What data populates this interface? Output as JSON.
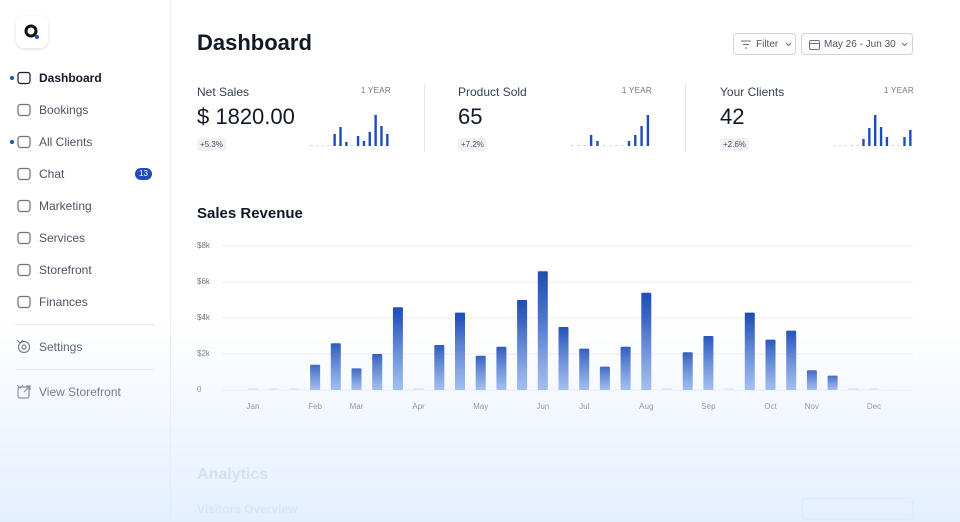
{
  "sidebar": {
    "nav": [
      {
        "label": "Dashboard"
      },
      {
        "label": "Bookings"
      },
      {
        "label": "All Clients"
      },
      {
        "label": "Chat",
        "badge": 13
      },
      {
        "label": "Marketing"
      },
      {
        "label": "Services"
      },
      {
        "label": "Storefront"
      },
      {
        "label": "Finances"
      }
    ],
    "settings": "Settings",
    "view_storefront": "View Storefront"
  },
  "header": {
    "title": "Dashboard",
    "filter": "Filter",
    "date_range": "May 26 - Jun 30"
  },
  "stats": [
    {
      "label": "Net Sales",
      "period": "1 YEAR",
      "value": "$ 1820.00",
      "change": "+5.3%",
      "bars": [
        1,
        1,
        1,
        1,
        12,
        19,
        4,
        1,
        10,
        5,
        14,
        31,
        20,
        12
      ]
    },
    {
      "label": "Product Sold",
      "period": "1 YEAR",
      "value": "65",
      "change": "+7.2%",
      "bars": [
        1,
        1,
        1,
        11,
        5,
        1,
        1,
        1,
        1,
        5,
        11,
        20,
        31
      ]
    },
    {
      "label": "Your Clients",
      "period": "1 YEAR",
      "value": "42",
      "change": "+2.6%",
      "bars": [
        1,
        1,
        1,
        1,
        1,
        7,
        18,
        31,
        19,
        9,
        1,
        1,
        9,
        16
      ]
    }
  ],
  "chart_data": {
    "type": "bar",
    "title": "Sales Revenue",
    "categories": [
      "Jan",
      null,
      null,
      "Feb",
      null,
      "Mar",
      null,
      null,
      "Apr",
      null,
      null,
      "May",
      null,
      null,
      "Jun",
      null,
      "Jul",
      null,
      null,
      "Aug",
      null,
      null,
      "Sep",
      null,
      null,
      "Oct",
      null,
      "Nov",
      null,
      null,
      "Dec"
    ],
    "values": [
      100,
      100,
      100,
      1400,
      2600,
      1200,
      2000,
      4600,
      100,
      2500,
      4300,
      1900,
      2400,
      5000,
      6600,
      3500,
      2300,
      1300,
      2400,
      5400,
      100,
      2100,
      3000,
      100,
      4300,
      2800,
      3300,
      1100,
      800,
      100,
      100
    ],
    "color": "#1e4db7",
    "ylim": [
      0,
      8000
    ],
    "yticks": [
      0,
      {
        "value": 2000,
        "label": "$2k"
      },
      {
        "value": 4000,
        "label": "$4k"
      },
      {
        "value": 6000,
        "label": "$6k"
      },
      {
        "value": 8000,
        "label": "$8k"
      }
    ],
    "grid": true
  },
  "analytics": {
    "title": "Analytics",
    "subtitle": "Visitors Overview"
  }
}
